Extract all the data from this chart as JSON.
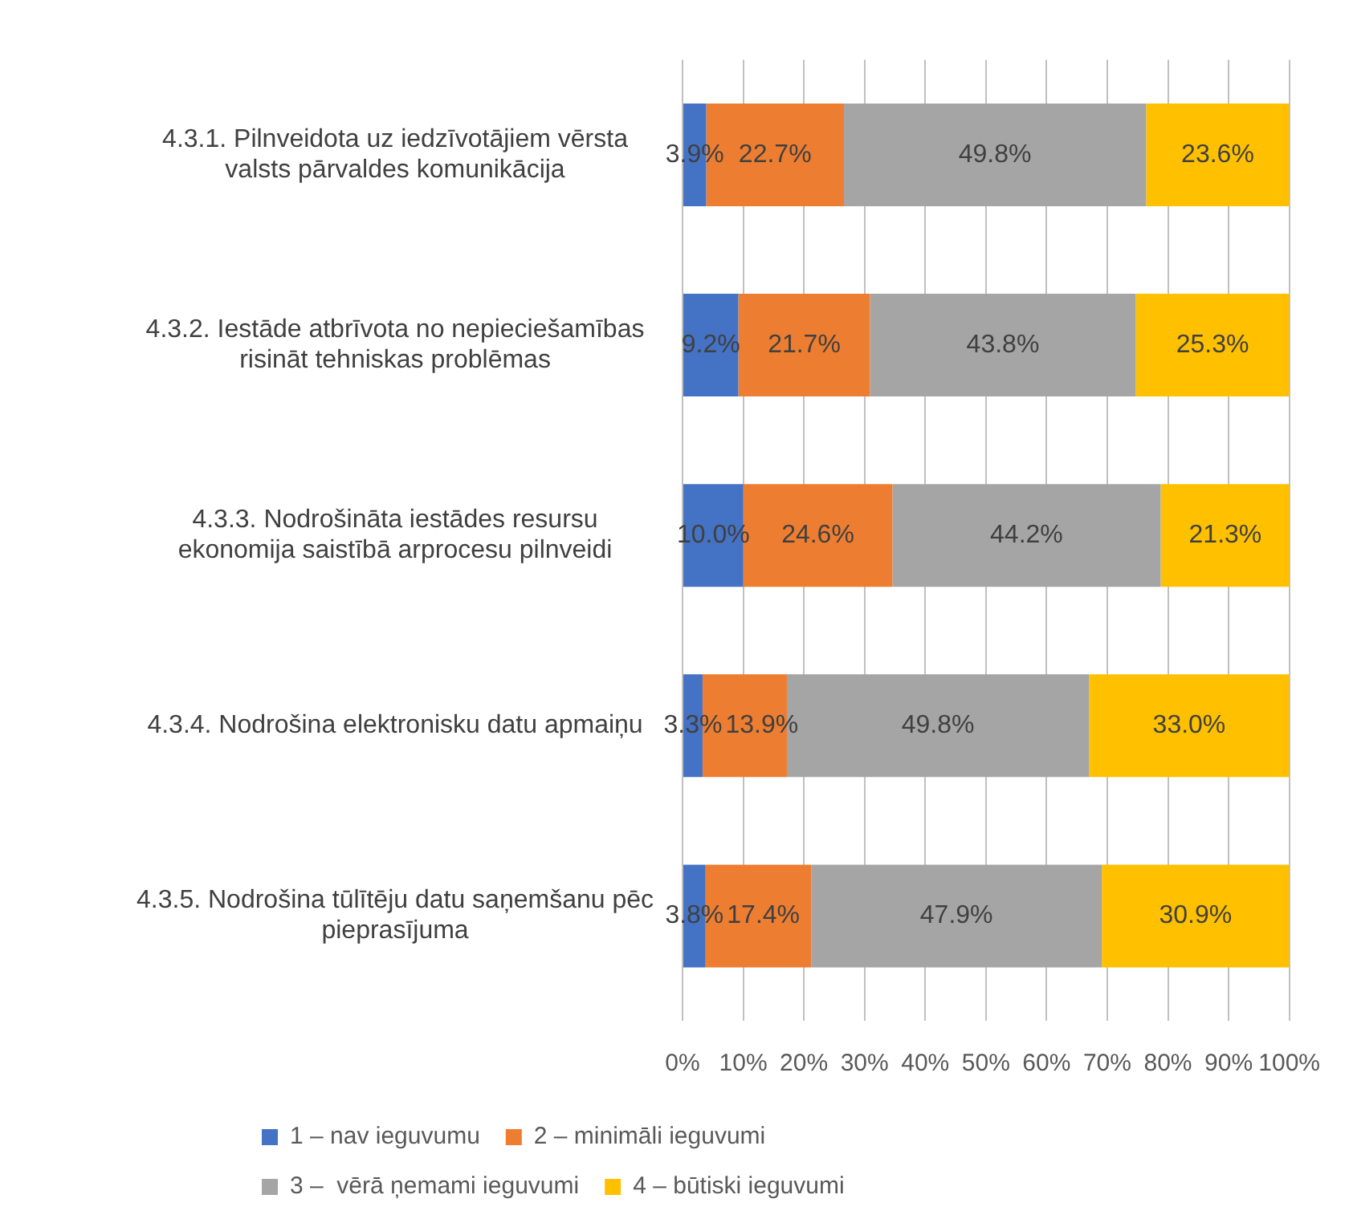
{
  "chart_data": {
    "type": "bar",
    "orientation": "horizontal",
    "stacked": true,
    "categories": [
      "4.3.1. Pilnveidota uz iedzīvotājiem vērsta\nvalsts pārvaldes komunikācija",
      "4.3.2. Iestāde atbrīvota no nepieciešamības\nrisināt tehniskas problēmas",
      "4.3.3. Nodrošināta iestādes resursu\nekonomija saistībā arprocesu pilnveidi",
      "4.3.4. Nodrošina elektronisku datu apmaiņu",
      "4.3.5. Nodrošina tūlītēju datu saņemšanu pēc\npieprasījuma"
    ],
    "series": [
      {
        "name": "1 – nav ieguvumu",
        "color": "#4472c4",
        "values": [
          3.9,
          9.2,
          10.0,
          3.3,
          3.8
        ],
        "value_labels": [
          "3.9%",
          "9.2%",
          "10.0%",
          "3.3%",
          "3.8%"
        ]
      },
      {
        "name": "2 – minimāli ieguvumi",
        "color": "#ed7d31",
        "values": [
          22.7,
          21.7,
          24.6,
          13.9,
          17.4
        ],
        "value_labels": [
          "22.7%",
          "21.7%",
          "24.6%",
          "13.9%",
          "17.4%"
        ]
      },
      {
        "name": "3 –  vērā ņemami ieguvumi",
        "color": "#a5a5a5",
        "values": [
          49.8,
          43.8,
          44.2,
          49.8,
          47.9
        ],
        "value_labels": [
          "49.8%",
          "43.8%",
          "44.2%",
          "49.8%",
          "47.9%"
        ]
      },
      {
        "name": "4 – būtiski ieguvumi",
        "color": "#ffc000",
        "values": [
          23.6,
          25.3,
          21.3,
          33.0,
          30.9
        ],
        "value_labels": [
          "23.6%",
          "25.3%",
          "21.3%",
          "33.0%",
          "30.9%"
        ]
      }
    ],
    "xlim": [
      0,
      100
    ],
    "xticks": [
      {
        "value": 0,
        "label": "0%"
      },
      {
        "value": 10,
        "label": "10%"
      },
      {
        "value": 20,
        "label": "20%"
      },
      {
        "value": 30,
        "label": "30%"
      },
      {
        "value": 40,
        "label": "40%"
      },
      {
        "value": 50,
        "label": "50%"
      },
      {
        "value": 60,
        "label": "60%"
      },
      {
        "value": 70,
        "label": "70%"
      },
      {
        "value": 80,
        "label": "80%"
      },
      {
        "value": 90,
        "label": "90%"
      },
      {
        "value": 100,
        "label": "100%"
      }
    ],
    "grid": "x",
    "legend": "bottom"
  }
}
